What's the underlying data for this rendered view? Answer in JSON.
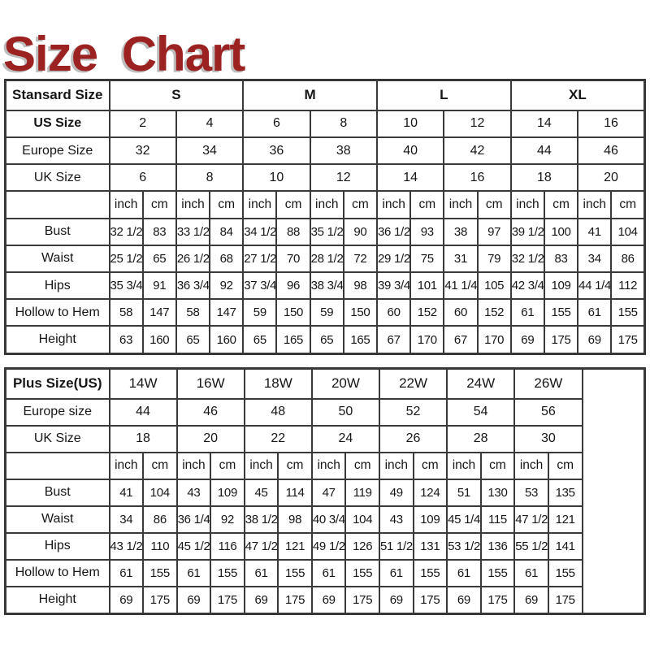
{
  "title": "Size Chart",
  "colors": {
    "title_text": "#9c2121",
    "title_shadow": "#bdbdbd",
    "table_border": "#3a3a3a",
    "cell_text": "#161616",
    "background": "#ffffff"
  },
  "chart_data": [
    {
      "type": "table",
      "name": "standard-size-chart",
      "corner": "Stansard Size",
      "group_colspan": 4,
      "trailing_empty_column": false,
      "groups": [
        "S",
        "M",
        "L",
        "XL"
      ],
      "unit_headers": [
        "inch",
        "cm"
      ],
      "size_rows": [
        {
          "label": "US Size",
          "bold": true,
          "values": [
            "2",
            "4",
            "6",
            "8",
            "10",
            "12",
            "14",
            "16"
          ]
        },
        {
          "label": "Europe Size",
          "bold": false,
          "values": [
            "32",
            "34",
            "36",
            "38",
            "40",
            "42",
            "44",
            "46"
          ]
        },
        {
          "label": "UK Size",
          "bold": false,
          "values": [
            "6",
            "8",
            "10",
            "12",
            "14",
            "16",
            "18",
            "20"
          ]
        }
      ],
      "measurement_rows": [
        {
          "label": "Bust",
          "inch": [
            "32 1/2",
            "33 1/2",
            "34 1/2",
            "35 1/2",
            "36 1/2",
            "38",
            "39 1/2",
            "41"
          ],
          "cm": [
            "83",
            "84",
            "88",
            "90",
            "93",
            "97",
            "100",
            "104"
          ]
        },
        {
          "label": "Waist",
          "inch": [
            "25 1/2",
            "26 1/2",
            "27 1/2",
            "28 1/2",
            "29 1/2",
            "31",
            "32 1/2",
            "34"
          ],
          "cm": [
            "65",
            "68",
            "70",
            "72",
            "75",
            "79",
            "83",
            "86"
          ]
        },
        {
          "label": "Hips",
          "inch": [
            "35 3/4",
            "36 3/4",
            "37 3/4",
            "38 3/4",
            "39 3/4",
            "41 1/4",
            "42 3/4",
            "44 1/4"
          ],
          "cm": [
            "91",
            "92",
            "96",
            "98",
            "101",
            "105",
            "109",
            "112"
          ]
        },
        {
          "label": "Hollow to Hem",
          "inch": [
            "58",
            "58",
            "59",
            "59",
            "60",
            "60",
            "61",
            "61"
          ],
          "cm": [
            "147",
            "147",
            "150",
            "150",
            "152",
            "152",
            "155",
            "155"
          ]
        },
        {
          "label": "Height",
          "inch": [
            "63",
            "65",
            "65",
            "65",
            "67",
            "67",
            "69",
            "69"
          ],
          "cm": [
            "160",
            "160",
            "165",
            "165",
            "170",
            "170",
            "175",
            "175"
          ]
        }
      ]
    },
    {
      "type": "table",
      "name": "plus-size-chart",
      "corner": "Plus Size(US)",
      "group_colspan": 2,
      "trailing_empty_column": true,
      "groups": [
        "14W",
        "16W",
        "18W",
        "20W",
        "22W",
        "24W",
        "26W"
      ],
      "unit_headers": [
        "inch",
        "cm"
      ],
      "size_rows": [
        {
          "label": "Europe size",
          "bold": false,
          "values": [
            "44",
            "46",
            "48",
            "50",
            "52",
            "54",
            "56"
          ]
        },
        {
          "label": "UK Size",
          "bold": false,
          "values": [
            "18",
            "20",
            "22",
            "24",
            "26",
            "28",
            "30"
          ]
        }
      ],
      "measurement_rows": [
        {
          "label": "Bust",
          "inch": [
            "41",
            "43",
            "45",
            "47",
            "49",
            "51",
            "53"
          ],
          "cm": [
            "104",
            "109",
            "114",
            "119",
            "124",
            "130",
            "135"
          ]
        },
        {
          "label": "Waist",
          "inch": [
            "34",
            "36 1/4",
            "38 1/2",
            "40 3/4",
            "43",
            "45 1/4",
            "47 1/2"
          ],
          "cm": [
            "86",
            "92",
            "98",
            "104",
            "109",
            "115",
            "121"
          ]
        },
        {
          "label": "Hips",
          "inch": [
            "43 1/2",
            "45 1/2",
            "47 1/2",
            "49 1/2",
            "51 1/2",
            "53 1/2",
            "55 1/2"
          ],
          "cm": [
            "110",
            "116",
            "121",
            "126",
            "131",
            "136",
            "141"
          ]
        },
        {
          "label": "Hollow to Hem",
          "inch": [
            "61",
            "61",
            "61",
            "61",
            "61",
            "61",
            "61"
          ],
          "cm": [
            "155",
            "155",
            "155",
            "155",
            "155",
            "155",
            "155"
          ]
        },
        {
          "label": "Height",
          "inch": [
            "69",
            "69",
            "69",
            "69",
            "69",
            "69",
            "69"
          ],
          "cm": [
            "175",
            "175",
            "175",
            "175",
            "175",
            "175",
            "175"
          ]
        }
      ]
    }
  ]
}
